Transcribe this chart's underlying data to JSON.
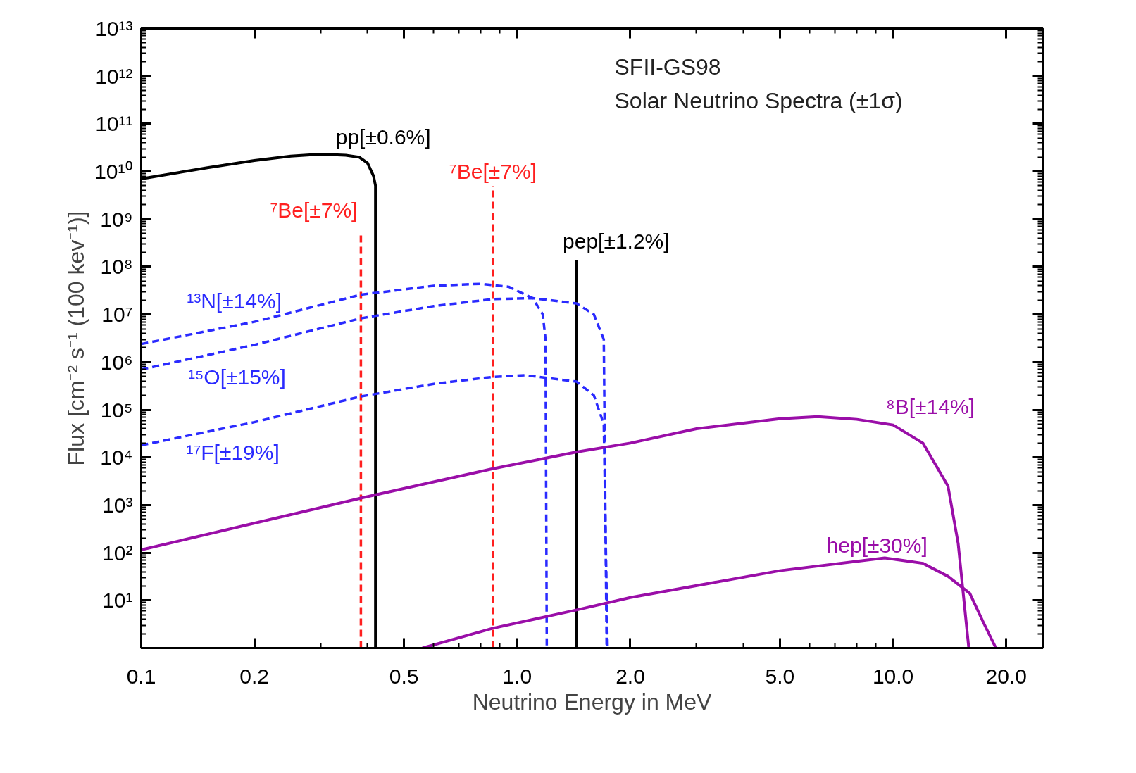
{
  "chart_data": {
    "type": "line",
    "title": "SFII-GS98",
    "subtitle": "Solar Neutrino Spectra (±1σ)",
    "xlabel": "Neutrino Energy in MeV",
    "ylabel": "Flux [cm⁻² s⁻¹ (100 kev⁻¹)]",
    "log": "xy",
    "xlim": [
      0.1,
      25
    ],
    "ylim": [
      1,
      10000000000000
    ],
    "xticks": [
      0.1,
      0.2,
      0.5,
      {
        "value": 1,
        "label": "1.0"
      },
      {
        "value": 2,
        "label": "2.0"
      },
      {
        "value": 5,
        "label": "5.0"
      },
      {
        "value": 10,
        "label": "10.0"
      },
      {
        "value": 20,
        "label": "20.0"
      }
    ],
    "yticks": [
      {
        "value": 10,
        "label": "10¹"
      },
      {
        "value": 100,
        "label": "10²"
      },
      {
        "value": 1000,
        "label": "10³"
      },
      {
        "value": 10000,
        "label": "10⁴"
      },
      {
        "value": 100000,
        "label": "10⁵"
      },
      {
        "value": 1000000,
        "label": "10⁶"
      },
      {
        "value": 10000000,
        "label": "10⁷"
      },
      {
        "value": 100000000,
        "label": "10⁸"
      },
      {
        "value": 1000000000,
        "label": "10⁹"
      },
      {
        "value": 10000000000,
        "label": "10¹⁰"
      },
      {
        "value": 100000000000,
        "label": "10¹¹"
      },
      {
        "value": 1000000000000,
        "label": "10¹²"
      },
      {
        "value": 10000000000000,
        "label": "10¹³"
      }
    ],
    "series": [
      {
        "name": "pp[±0.6%]",
        "color": "#000000",
        "line_style": "solid",
        "x": [
          0.1,
          0.15,
          0.2,
          0.25,
          0.3,
          0.35,
          0.38,
          0.4,
          0.415,
          0.42,
          0.42
        ],
        "values": [
          7000000000,
          12000000000,
          17000000000,
          21000000000,
          23000000000,
          22000000000,
          20000000000,
          15000000000,
          8000000000,
          5000000000,
          1
        ]
      },
      {
        "name": "⁷Be[±7%]",
        "color": "#ff2020",
        "line_style": "dashed",
        "x": [
          0.384,
          0.384
        ],
        "values": [
          1,
          500000000
        ]
      },
      {
        "name": "⁷Be[±7%]",
        "color": "#ff2020",
        "line_style": "dashed",
        "x": [
          0.862,
          0.862
        ],
        "values": [
          1,
          5000000000
        ]
      },
      {
        "name": "pep[±1.2%]",
        "color": "#000000",
        "line_style": "solid",
        "x": [
          1.44,
          1.44
        ],
        "values": [
          1,
          140000000
        ]
      },
      {
        "name": "¹³N[±14%]",
        "color": "#2a2aff",
        "line_style": "dashed",
        "x": [
          0.1,
          0.2,
          0.384,
          0.6,
          0.8,
          0.95,
          1.1,
          1.17,
          1.19,
          1.199
        ],
        "values": [
          2400000,
          7000000,
          26000000,
          40000000,
          44000000,
          38000000,
          22000000,
          10000000,
          3000000,
          1
        ]
      },
      {
        "name": "¹⁵O[±15%]",
        "color": "#2a2aff",
        "line_style": "dashed",
        "x": [
          0.1,
          0.2,
          0.384,
          0.6,
          0.862,
          1.1,
          1.44,
          1.6,
          1.7,
          1.73
        ],
        "values": [
          700000,
          2300000,
          8300000,
          15000000,
          21000000,
          22000000,
          17000000,
          10000000,
          3000000,
          1
        ]
      },
      {
        "name": "¹⁷F[±19%]",
        "color": "#2a2aff",
        "line_style": "dashed",
        "x": [
          0.1,
          0.2,
          0.384,
          0.6,
          0.862,
          1.05,
          1.44,
          1.6,
          1.7,
          1.74
        ],
        "values": [
          18000,
          55000,
          190000,
          350000,
          490000,
          530000,
          390000,
          200000,
          50000,
          1
        ]
      },
      {
        "name": "⁸B[±14%]",
        "color": "#9a0ea8",
        "line_style": "solid",
        "x": [
          0.1,
          0.384,
          0.862,
          1.44,
          2,
          3,
          5,
          6.3,
          8,
          10,
          12,
          14,
          14.9,
          15.9
        ],
        "values": [
          115,
          1400,
          5800,
          13000,
          20000,
          40000,
          65000,
          72000,
          63000,
          48000,
          20000,
          2500,
          155,
          1
        ]
      },
      {
        "name": "hep[±30%]",
        "color": "#9a0ea8",
        "line_style": "solid",
        "x": [
          0.56,
          0.862,
          1.44,
          2,
          5,
          9.5,
          12,
          14,
          16,
          17.4,
          18.77
        ],
        "values": [
          1,
          2.6,
          6.3,
          11.5,
          42,
          78,
          60,
          32,
          14,
          3.4,
          1
        ]
      }
    ]
  }
}
